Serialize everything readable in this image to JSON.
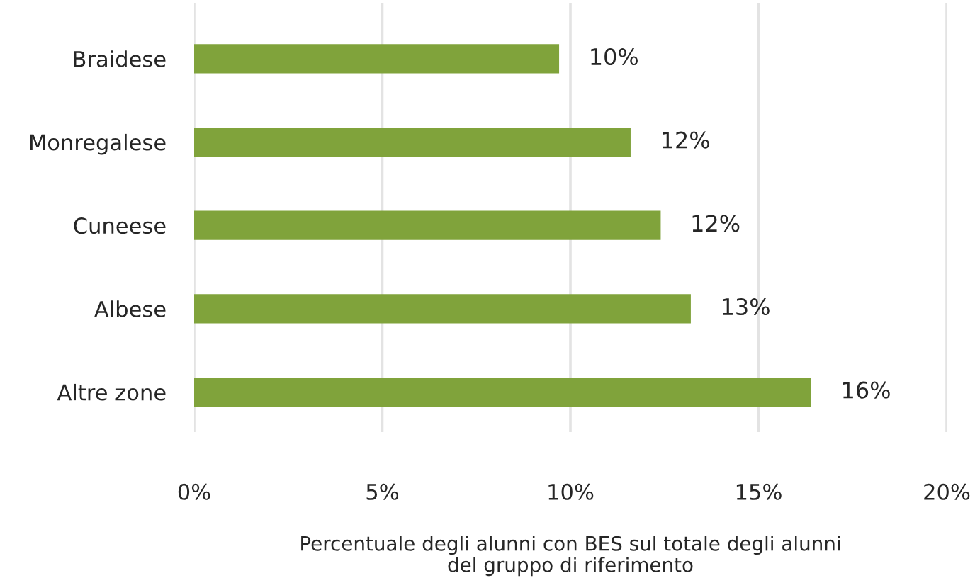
{
  "chart_data": {
    "type": "bar",
    "orientation": "horizontal",
    "categories": [
      "Braidese",
      "Monregalese",
      "Cuneese",
      "Albese",
      "Altre zone"
    ],
    "values": [
      9.7,
      11.6,
      12.4,
      13.2,
      16.4
    ],
    "value_labels": [
      "10%",
      "12%",
      "12%",
      "13%",
      "16%"
    ],
    "color": "#80a33b",
    "xlabel": "Percentuale degli alunni con BES sul totale degli alunni\ndel gruppo di riferimento",
    "xlim": [
      0,
      20
    ],
    "xticks": [
      {
        "value": 0,
        "label": "0%"
      },
      {
        "value": 5,
        "label": "5%"
      },
      {
        "value": 10,
        "label": "10%"
      },
      {
        "value": 15,
        "label": "15%"
      },
      {
        "value": 20,
        "label": "20%"
      }
    ],
    "grid": "x"
  }
}
